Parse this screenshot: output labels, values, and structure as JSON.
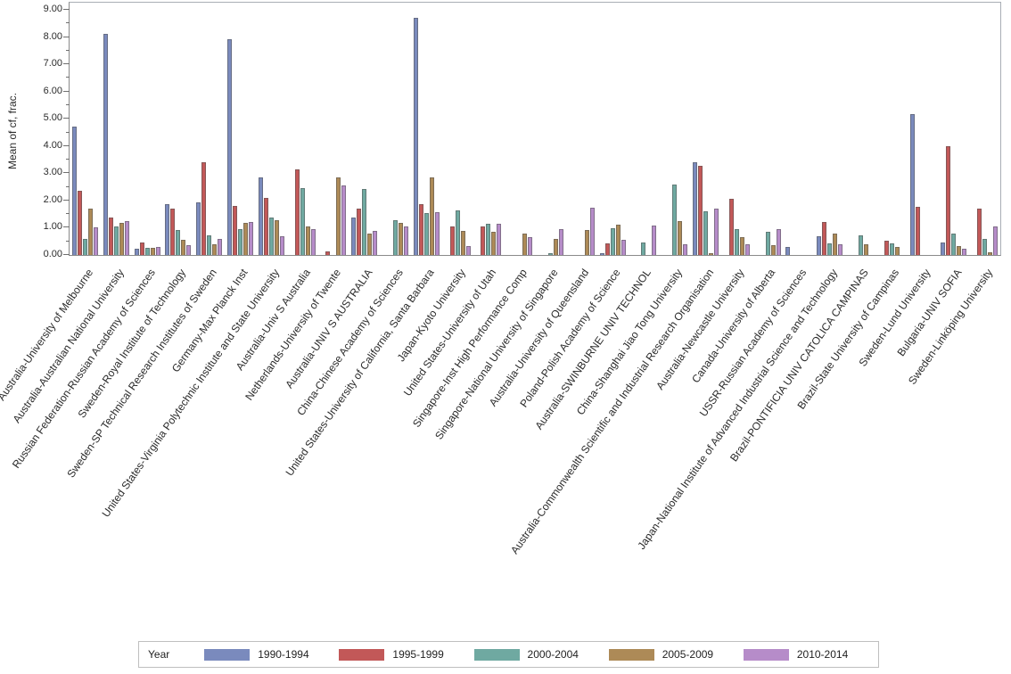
{
  "legend": {
    "title": "Year"
  },
  "chart_data": {
    "type": "bar",
    "title": "",
    "xlabel": "",
    "ylabel": "Mean of cf, frac.",
    "ylim": [
      0,
      9
    ],
    "ytick_labels": [
      "0.00",
      "1.00",
      "2.00",
      "3.00",
      "4.00",
      "5.00",
      "6.00",
      "7.00",
      "8.00",
      "9.00"
    ],
    "minor_tick_step": 0.5,
    "grid": false,
    "legend_position": "bottom",
    "categories": [
      "Australia-University of Melbourne",
      "Australia-Australian National University",
      "Russian Federation-Russian Academy of Sciences",
      "Sweden-Royal Institute of Technology",
      "Sweden-SP Technical Research Institutes of Sweden",
      "Germany-Max Planck Inst",
      "United States-Virginia Polytechnic Institute and State University",
      "Australia-Univ S Australia",
      "Netherlands-University of Twente",
      "Australia-UNIV S AUSTRALIA",
      "China-Chinese Academy of Sciences",
      "United States-University of California, Santa Barbara",
      "Japan-Kyoto University",
      "United States-University of Utah",
      "Singapore-Inst High Performance Comp",
      "Singapore-National University of Singapore",
      "Australia-University of Queensland",
      "Poland-Polish Academy of Science",
      "Australia-SWINBURNE UNIV TECHNOL",
      "China-Shanghai Jiao Tong University",
      "Australia-Commonwealth Scientific and Industrial Research Organisation",
      "Australia-Newcastle University",
      "Canada-University of Alberta",
      "USSR-Russian Academy of Sciences",
      "Japan-National Institute of Advanced Industrial Science and Technology",
      "Brazil-PONTIFICIA UNIV CATOLICA CAMPINAS",
      "Brazil-State University of Campinas",
      "Sweden-Lund University",
      "Bulgaria-UNIV SOFIA",
      "Sweden-Linköping University"
    ],
    "series": [
      {
        "name": "1990-1994",
        "color": "#7a8abd",
        "values": [
          4.7,
          8.1,
          0.24,
          1.85,
          1.93,
          7.93,
          2.84,
          null,
          null,
          1.36,
          null,
          8.7,
          null,
          null,
          null,
          null,
          null,
          0.08,
          null,
          null,
          3.41,
          null,
          null,
          0.29,
          0.68,
          null,
          null,
          5.18,
          0.46,
          null
        ]
      },
      {
        "name": "1995-1999",
        "color": "#c25858",
        "values": [
          2.34,
          1.36,
          0.47,
          1.71,
          3.41,
          1.8,
          2.09,
          3.15,
          0.13,
          1.69,
          null,
          1.86,
          1.04,
          1.06,
          null,
          null,
          null,
          0.44,
          null,
          null,
          3.27,
          2.07,
          null,
          null,
          1.22,
          null,
          0.51,
          1.78,
          4.0,
          1.7
        ]
      },
      {
        "name": "2000-2004",
        "color": "#6fa9a1",
        "values": [
          0.58,
          1.04,
          0.25,
          0.93,
          0.73,
          0.96,
          1.38,
          2.45,
          null,
          2.43,
          1.28,
          1.55,
          1.63,
          1.15,
          null,
          0.08,
          null,
          0.98,
          0.46,
          2.58,
          1.59,
          0.95,
          0.84,
          null,
          0.44,
          0.71,
          0.44,
          null,
          0.78,
          0.58
        ]
      },
      {
        "name": "2005-2009",
        "color": "#ad8a57",
        "values": [
          1.69,
          1.17,
          0.25,
          0.55,
          0.4,
          1.19,
          1.29,
          1.04,
          2.85,
          0.8,
          1.18,
          2.84,
          0.89,
          0.84,
          0.8,
          0.58,
          0.93,
          1.1,
          null,
          1.23,
          0.08,
          0.65,
          0.35,
          null,
          0.79,
          0.38,
          0.3,
          null,
          0.32,
          0.11
        ]
      },
      {
        "name": "2010-2014",
        "color": "#b68cc9",
        "values": [
          1.01,
          1.23,
          0.29,
          0.36,
          0.6,
          1.2,
          0.68,
          0.95,
          2.56,
          0.87,
          1.05,
          1.56,
          0.33,
          1.15,
          0.65,
          0.95,
          1.72,
          0.55,
          1.09,
          0.38,
          1.71,
          0.38,
          0.95,
          null,
          0.4,
          null,
          null,
          null,
          0.23,
          1.05
        ]
      }
    ]
  }
}
